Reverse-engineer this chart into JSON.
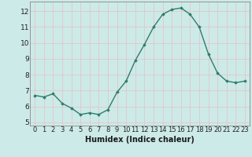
{
  "x": [
    0,
    1,
    2,
    3,
    4,
    5,
    6,
    7,
    8,
    9,
    10,
    11,
    12,
    13,
    14,
    15,
    16,
    17,
    18,
    19,
    20,
    21,
    22,
    23
  ],
  "y": [
    6.7,
    6.6,
    6.8,
    6.2,
    5.9,
    5.5,
    5.6,
    5.5,
    5.8,
    6.9,
    7.6,
    8.9,
    9.9,
    11.0,
    11.8,
    12.1,
    12.2,
    11.8,
    11.0,
    9.3,
    8.1,
    7.6,
    7.5,
    7.6
  ],
  "line_color": "#2e7d6e",
  "marker": "D",
  "marker_size": 1.8,
  "xlabel": "Humidex (Indice chaleur)",
  "xlim": [
    -0.5,
    23.5
  ],
  "ylim": [
    4.8,
    12.6
  ],
  "yticks": [
    5,
    6,
    7,
    8,
    9,
    10,
    11,
    12
  ],
  "xticks": [
    0,
    1,
    2,
    3,
    4,
    5,
    6,
    7,
    8,
    9,
    10,
    11,
    12,
    13,
    14,
    15,
    16,
    17,
    18,
    19,
    20,
    21,
    22,
    23
  ],
  "xtick_labels": [
    "0",
    "1",
    "2",
    "3",
    "4",
    "5",
    "6",
    "7",
    "8",
    "9",
    "10",
    "11",
    "12",
    "13",
    "14",
    "15",
    "16",
    "17",
    "18",
    "19",
    "20",
    "21",
    "22",
    "23"
  ],
  "bg_color": "#cceae8",
  "grid_color_major": "#e8c0c0",
  "grid_color_minor": "#cce8e8",
  "line_width": 1.0,
  "tick_fontsize": 6.0,
  "xlabel_fontsize": 7.0,
  "ytick_fontsize": 6.5
}
